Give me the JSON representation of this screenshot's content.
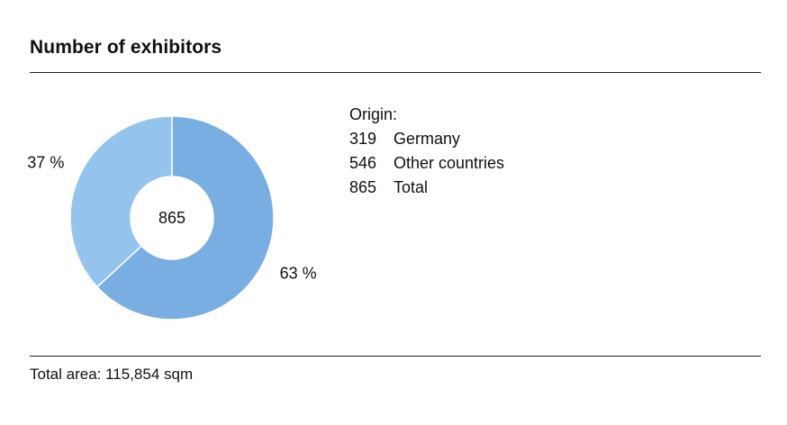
{
  "title": "Number of exhibitors",
  "legend": {
    "heading": "Origin:",
    "rows": [
      {
        "value": "319",
        "label": "Germany"
      },
      {
        "value": "546",
        "label": "Other countries"
      },
      {
        "value": "865",
        "label": "Total"
      }
    ]
  },
  "footer": {
    "text": "Total area: 115,854 sqm"
  },
  "colors": {
    "germany": "#94c4ee",
    "other": "#78aee2",
    "separator": "#ffffff"
  },
  "chart_data": {
    "type": "pie",
    "title": "Number of exhibitors",
    "center_label": "865",
    "categories": [
      "Germany",
      "Other countries"
    ],
    "values": [
      319,
      546
    ],
    "percent_labels": [
      "37 %",
      "63 %"
    ]
  }
}
